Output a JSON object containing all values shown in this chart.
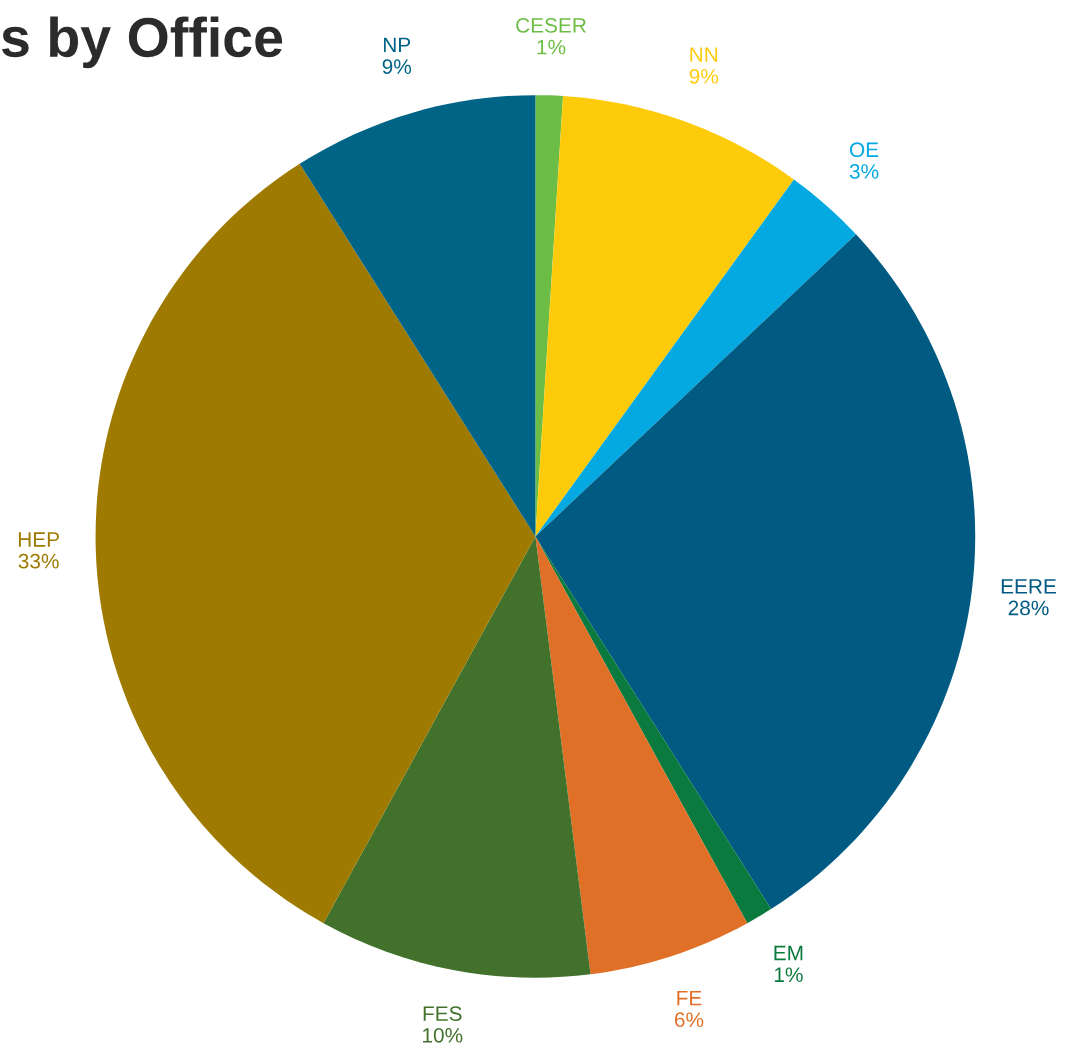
{
  "chart_data": {
    "type": "pie",
    "title": "s by Office",
    "categories": [
      "CESER",
      "NN",
      "OE",
      "EERE",
      "EM",
      "FE",
      "FES",
      "HEP",
      "NP"
    ],
    "values": [
      1,
      9,
      3,
      28,
      1,
      6,
      10,
      33,
      9
    ],
    "value_labels": [
      "1%",
      "9%",
      "3%",
      "28%",
      "1%",
      "6%",
      "10%",
      "33%",
      "9%"
    ],
    "colors": [
      "#6cbd45",
      "#fecb0a",
      "#03a9e0",
      "#005a82",
      "#0b7a3e",
      "#e07028",
      "#41712a",
      "#9e7b00",
      "#006487"
    ]
  }
}
